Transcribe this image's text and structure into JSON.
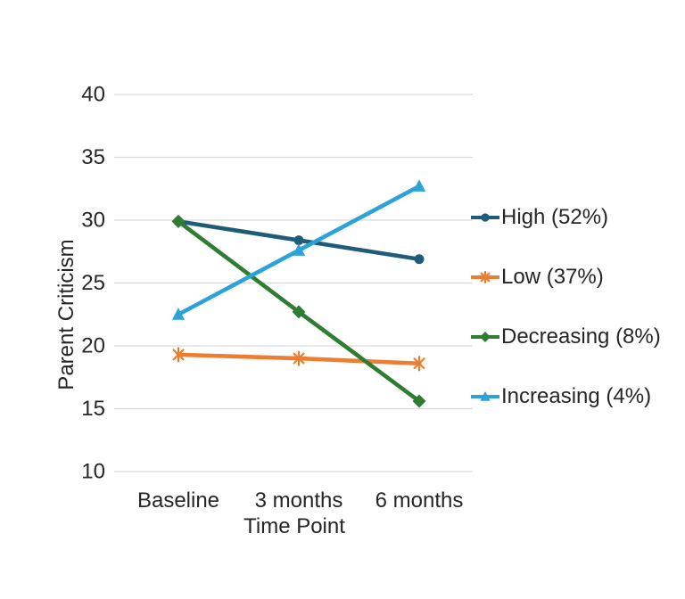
{
  "chart_data": {
    "type": "line",
    "title": "",
    "xlabel": "Time Point",
    "ylabel": "Parent Criticism",
    "categories": [
      "Baseline",
      "3 months",
      "6 months"
    ],
    "yticks": [
      40,
      35,
      30,
      25,
      20,
      15,
      10
    ],
    "ylim": [
      10,
      40
    ],
    "grid": true,
    "legend_position": "right",
    "series": [
      {
        "name": "High (52%)",
        "values": [
          29.9,
          28.4,
          26.9
        ],
        "color": "#1F5C7A",
        "marker": "circle"
      },
      {
        "name": "Low (37%)",
        "values": [
          19.3,
          19.0,
          18.6
        ],
        "color": "#ED7D31",
        "marker": "asterisk"
      },
      {
        "name": "Decreasing (8%)",
        "values": [
          29.9,
          22.7,
          15.6
        ],
        "color": "#2E7D32",
        "marker": "diamond"
      },
      {
        "name": "Increasing (4%)",
        "values": [
          22.5,
          27.6,
          32.7
        ],
        "color": "#2BA2D8",
        "marker": "triangle"
      }
    ]
  },
  "colors": {
    "gridline": "#D9D9D9",
    "text": "#262626",
    "background": "#FFFFFF"
  }
}
